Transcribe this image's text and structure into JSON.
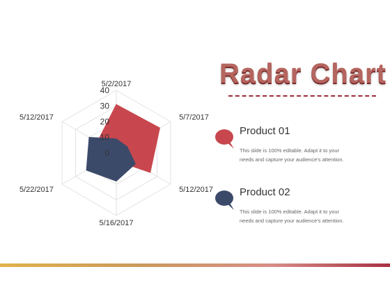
{
  "slide": {
    "title": "Radar Chart"
  },
  "colors": {
    "product1": "#c8474e",
    "product2": "#3c4a6a",
    "grid": "#e2e2e2",
    "title": "#b5655f"
  },
  "legend": [
    {
      "name": "Product 01",
      "description": "This slide is 100% editable. Adapt it to your needs and capture your audience's attention.",
      "icon": "speech-bubble-icon"
    },
    {
      "name": "Product 02",
      "description": "This slide is 100% editable. Adapt it to your needs and capture your audience's attention.",
      "icon": "speech-bubble-icon"
    }
  ],
  "chart_data": {
    "type": "radar",
    "categories": [
      "5/2/2017",
      "5/7/2017",
      "5/12/2017",
      "5/16/2017",
      "5/22/2017",
      "5/12/2017"
    ],
    "rlim": [
      0,
      40
    ],
    "ticks": [
      0,
      10,
      20,
      30,
      40
    ],
    "grid": true,
    "series": [
      {
        "name": "Product 01",
        "values": [
          31,
          32,
          25,
          5,
          5,
          14
        ]
      },
      {
        "name": "Product 02",
        "values": [
          9,
          8,
          14,
          18,
          22,
          20
        ]
      }
    ]
  }
}
